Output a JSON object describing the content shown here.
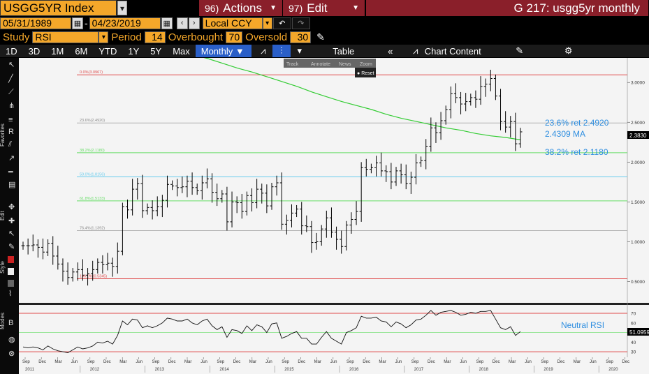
{
  "header": {
    "ticker": "USGG5YR Index",
    "actions_num": "96)",
    "actions": "Actions",
    "edit_num": "97)",
    "edit": "Edit",
    "title": "G 217: usgg5yr monthly"
  },
  "dates": {
    "start": "05/31/1989",
    "end": "04/23/2019",
    "currency": "Local CCY"
  },
  "study": {
    "label": "Study",
    "name": "RSI",
    "period_label": "Period",
    "period": "14",
    "overbought_label": "Overbought",
    "overbought": "70",
    "oversold_label": "Oversold",
    "oversold": "30"
  },
  "toolbar": {
    "ranges": [
      "1D",
      "3D",
      "1M",
      "6M",
      "YTD",
      "1Y",
      "5Y",
      "Max"
    ],
    "frequency": "Monthly ▼",
    "table": "Table",
    "chart_content": "Chart Content"
  },
  "popup": {
    "items": [
      "Track",
      "Annotate",
      "News",
      "Zoom"
    ],
    "reset": "Reset"
  },
  "sidebar": {
    "favorites": "Favorites",
    "edit": "Edit",
    "style": "Style",
    "modes": "Modes"
  },
  "colors": {
    "accent": "#f4a72a",
    "menu": "#8a1f2a",
    "price": "#000000",
    "ma": "#33cc33"
  },
  "chart_data": {
    "type": "ohlc-bar",
    "price_axis": {
      "ylim": [
        0.25,
        3.3
      ],
      "ticks": [
        "0.5000",
        "1.0000",
        "1.5000",
        "2.0000",
        "2.5000",
        "3.0000"
      ]
    },
    "rsi_axis": {
      "ylim": [
        25,
        78
      ],
      "ticks": [
        "30",
        "40",
        "50",
        "60",
        "70"
      ]
    },
    "x_month_labels": [
      "Sep",
      "Dec",
      "Mar",
      "Jun",
      "Sep",
      "Dec",
      "Mar",
      "Jun",
      "Sep",
      "Dec",
      "Mar",
      "Jun",
      "Sep",
      "Dec",
      "Mar",
      "Jun",
      "Sep",
      "Dec",
      "Mar",
      "Jun",
      "Sep",
      "Dec",
      "Mar",
      "Jun",
      "Sep",
      "Dec",
      "Mar",
      "Jun",
      "Sep",
      "Dec",
      "Mar",
      "Jun",
      "Sep",
      "Dec",
      "Mar",
      "Jun",
      "Sep",
      "Dec"
    ],
    "x_year_labels": [
      "2011",
      "2012",
      "2013",
      "2014",
      "2015",
      "2016",
      "2017",
      "2018",
      "2019",
      "2020"
    ],
    "fib_levels": [
      {
        "label": "0.0%(3.0967)",
        "value": 3.0967,
        "color": "#e04a4a"
      },
      {
        "label": "23.6%(2.4920)",
        "value": 2.492,
        "color": "#b0b0b0"
      },
      {
        "label": "38.2%(2.1180)",
        "value": 2.118,
        "color": "#66dd66"
      },
      {
        "label": "50.0%(1.8156)",
        "value": 1.8156,
        "color": "#66ccee"
      },
      {
        "label": "61.8%(1.5133)",
        "value": 1.5133,
        "color": "#66dd66"
      },
      {
        "label": "76.4%(1.1392)",
        "value": 1.1392,
        "color": "#b0b0b0"
      },
      {
        "label": "100.0%(0.5345)",
        "value": 0.5345,
        "color": "#e04a4a"
      }
    ],
    "annotations": [
      "23.6% ret  2.4920",
      "2.4309 MA",
      "38.2% ret  2.1180"
    ],
    "last_price": "2.3830",
    "rsi_label": "Neutral RSI",
    "rsi_last": "51.0959",
    "closes": [
      0.95,
      0.95,
      0.96,
      0.93,
      0.87,
      0.98,
      0.82,
      0.72,
      0.63,
      0.55,
      0.62,
      0.65,
      0.58,
      0.6,
      0.65,
      0.74,
      0.71,
      0.73,
      0.69,
      0.88,
      1.44,
      1.4,
      1.66,
      1.73,
      1.39,
      1.43,
      1.39,
      1.44,
      1.52,
      1.72,
      1.7,
      1.68,
      1.69,
      1.76,
      1.68,
      1.64,
      1.74,
      1.79,
      1.62,
      1.54,
      1.6,
      1.25,
      1.5,
      1.49,
      1.38,
      1.58,
      1.49,
      1.66,
      1.61,
      1.45,
      1.69,
      1.74,
      1.22,
      1.27,
      1.36,
      1.41,
      1.2,
      1.19,
      0.99,
      1.0,
      1.16,
      1.3,
      1.12,
      1.03,
      0.94,
      1.21,
      1.28,
      1.38,
      1.93,
      1.91,
      1.93,
      1.99,
      1.89,
      1.88,
      1.75,
      1.89,
      1.84,
      1.73,
      1.81,
      1.99,
      2.02,
      2.2,
      2.43,
      2.37,
      2.52,
      2.66,
      2.86,
      2.81,
      2.73,
      2.76,
      2.81,
      2.79,
      2.95,
      2.98,
      3.05,
      2.83,
      2.51,
      2.44,
      2.51,
      2.23,
      2.38
    ],
    "ma": [
      3.4,
      3.35,
      3.3,
      3.24,
      3.18,
      3.13,
      3.07,
      3.01,
      2.95,
      2.88,
      2.82,
      2.76,
      2.71,
      2.66,
      2.6,
      2.55,
      2.51,
      2.47,
      2.43,
      2.4,
      2.36,
      2.33,
      2.31,
      2.28,
      2.43
    ],
    "rsi": [
      35,
      34,
      35,
      34,
      32,
      36,
      33,
      31,
      30,
      29,
      32,
      35,
      33,
      34,
      36,
      40,
      39,
      41,
      38,
      47,
      62,
      58,
      64,
      63,
      55,
      57,
      55,
      57,
      60,
      65,
      64,
      62,
      62,
      64,
      60,
      58,
      62,
      64,
      57,
      53,
      56,
      45,
      53,
      52,
      49,
      57,
      52,
      58,
      56,
      50,
      59,
      60,
      44,
      46,
      49,
      51,
      44,
      44,
      38,
      38,
      45,
      51,
      44,
      41,
      38,
      50,
      52,
      55,
      67,
      65,
      65,
      66,
      62,
      61,
      56,
      61,
      59,
      55,
      58,
      63,
      64,
      68,
      73,
      68,
      71,
      72,
      73,
      71,
      68,
      69,
      71,
      70,
      72,
      72,
      73,
      64,
      55,
      53,
      56,
      47,
      51
    ]
  }
}
